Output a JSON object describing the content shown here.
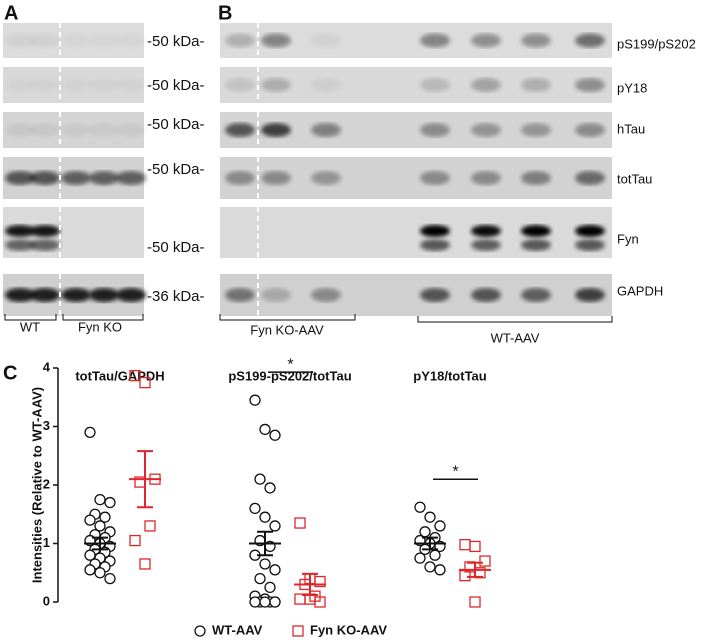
{
  "panel_a": {
    "label": "A",
    "markers": [
      "-50 kDa-",
      "-50 kDa-",
      "-50 kDa-",
      "-50 kDa-",
      "-50 kDa-",
      "-36 kDa-"
    ],
    "groups": [
      "WT",
      "Fyn KO"
    ]
  },
  "panel_b": {
    "label": "B",
    "antibodies": [
      "pS199/pS202",
      "pY18",
      "hTau",
      "totTau",
      "Fyn",
      "GAPDH"
    ],
    "groups": [
      "Fyn KO-AAV",
      "WT-AAV"
    ]
  },
  "chart_data": {
    "type": "scatter",
    "label": "C",
    "categories": [
      "totTau/GAPDH",
      "pS199-pS202/totTau",
      "pY18/totTau"
    ],
    "ylabel": "Intensities (Relative to WT-AAV)",
    "ylim": [
      0,
      4
    ],
    "yticks": [
      0,
      1,
      2,
      3,
      4
    ],
    "series": [
      {
        "name": "WT-AAV",
        "color": "#111111",
        "marker": "circle",
        "values": [
          [
            2.9,
            1.75,
            1.7,
            1.5,
            1.45,
            1.4,
            1.3,
            1.2,
            1.15,
            1.1,
            1.05,
            1.0,
            0.95,
            0.9,
            0.85,
            0.8,
            0.75,
            0.7,
            0.65,
            0.6,
            0.55,
            0.5,
            0.4
          ],
          [
            3.45,
            2.95,
            2.85,
            2.1,
            1.95,
            1.6,
            1.45,
            1.3,
            1.05,
            0.95,
            0.8,
            0.65,
            0.55,
            0.4,
            0.25,
            0.1,
            0.05,
            0,
            0,
            0,
            0,
            0,
            0
          ],
          [
            1.62,
            1.45,
            1.3,
            1.2,
            1.1,
            1.05,
            1.0,
            0.95,
            0.9,
            0.8,
            0.75,
            0.6,
            0.55
          ]
        ],
        "means": [
          1.0,
          1.0,
          1.0
        ],
        "sem": [
          0.1,
          0.2,
          0.1
        ]
      },
      {
        "name": "Fyn KO-AAV",
        "color": "#e0262b",
        "marker": "square",
        "values": [
          [
            3.87,
            3.75,
            2.1,
            2.05,
            1.3,
            1.05,
            0.65
          ],
          [
            1.35,
            0.4,
            0.35,
            0.3,
            0.1,
            0.05,
            0.05,
            0
          ],
          [
            0.98,
            0.95,
            0.7,
            0.6,
            0.5,
            0.45,
            0
          ]
        ],
        "means": [
          2.1,
          0.3,
          0.55
        ],
        "sem": [
          0.48,
          0.18,
          0.12
        ]
      }
    ],
    "annotations": [
      {
        "category": 1,
        "label": "*"
      },
      {
        "category": 2,
        "label": "*"
      }
    ]
  }
}
